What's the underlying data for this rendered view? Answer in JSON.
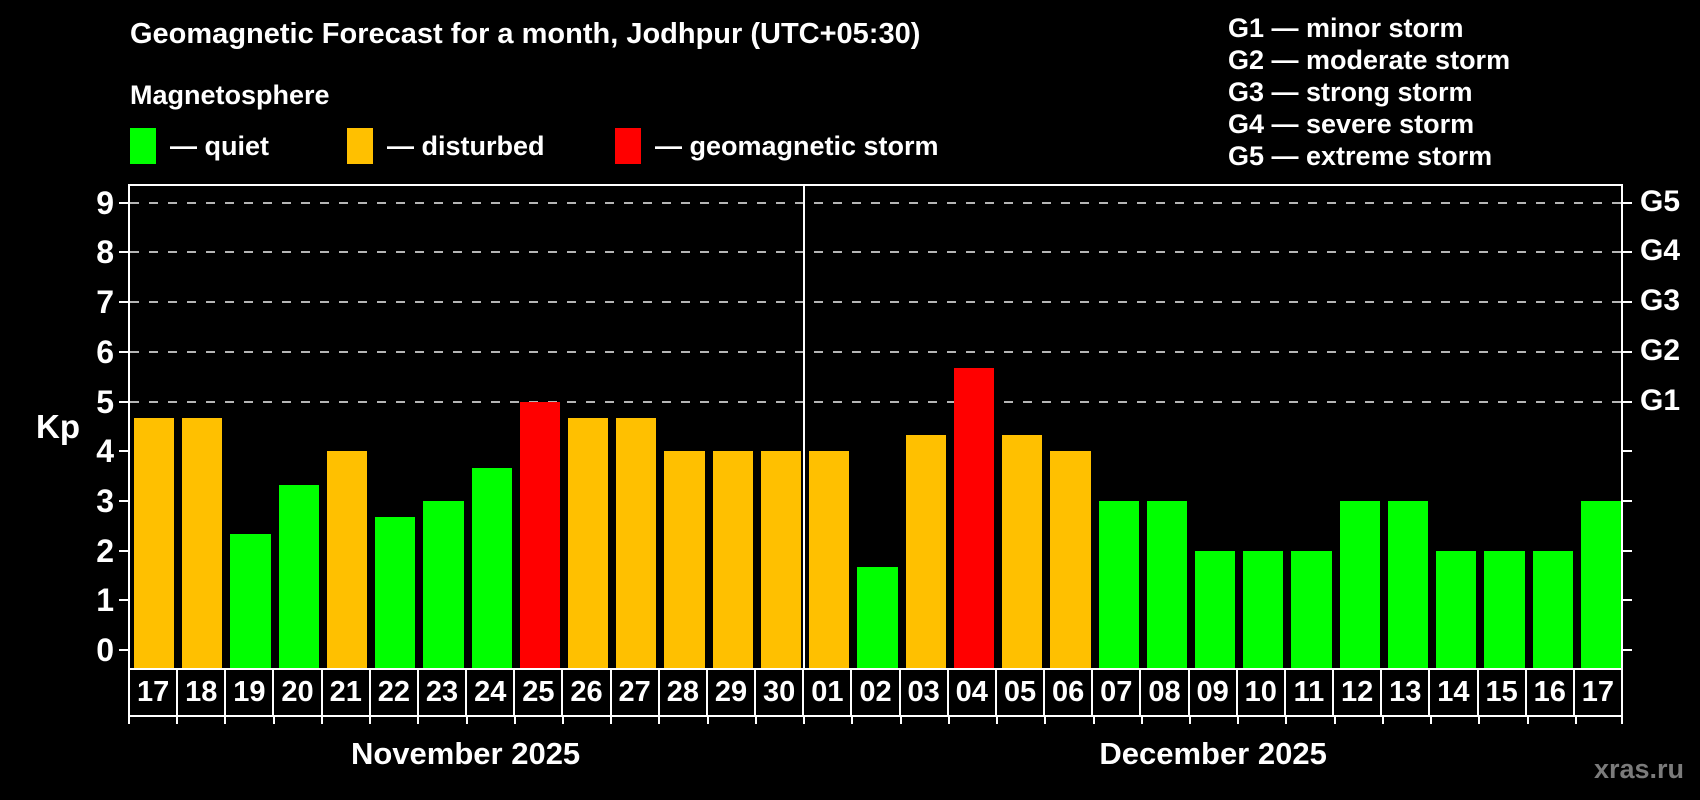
{
  "title": "Geomagnetic Forecast for a month, Jodhpur (UTC+05:30)",
  "subtitle": "Magnetosphere",
  "legend": {
    "items": [
      {
        "key": "quiet",
        "label": "— quiet",
        "color": "#00ff00"
      },
      {
        "key": "disturbed",
        "label": "— disturbed",
        "color": "#ffc000"
      },
      {
        "key": "storm",
        "label": "— geomagnetic storm",
        "color": "#ff0000"
      }
    ]
  },
  "g_scale_legend": [
    "G1 — minor storm",
    "G2 — moderate storm",
    "G3 — strong storm",
    "G4 — severe storm",
    "G5 — extreme storm"
  ],
  "watermark": "xras.ru",
  "chart_data": {
    "type": "bar",
    "title": "Geomagnetic Forecast for a month, Jodhpur (UTC+05:30)",
    "xlabel": "",
    "ylabel": "Kp",
    "ylim": [
      0,
      9.45
    ],
    "yticks": [
      0,
      1,
      2,
      3,
      4,
      5,
      6,
      7,
      8,
      9
    ],
    "gridlines_at_kp": [
      5,
      6,
      7,
      8,
      9
    ],
    "grid": "dashed horizontal at Kp 5-9",
    "legend_position": "top",
    "right_axis_labels": [
      {
        "kp": 5,
        "label": "G1"
      },
      {
        "kp": 6,
        "label": "G2"
      },
      {
        "kp": 7,
        "label": "G3"
      },
      {
        "kp": 8,
        "label": "G4"
      },
      {
        "kp": 9,
        "label": "G5"
      }
    ],
    "months": [
      {
        "label": "November 2025",
        "days": 14
      },
      {
        "label": "December 2025",
        "days": 17
      }
    ],
    "colors": {
      "quiet": "#00ff00",
      "disturbed": "#ffc000",
      "storm": "#ff0000"
    },
    "bars": [
      {
        "month": "November 2025",
        "day": "17",
        "kp": 4.67,
        "status": "disturbed"
      },
      {
        "month": "November 2025",
        "day": "18",
        "kp": 4.67,
        "status": "disturbed"
      },
      {
        "month": "November 2025",
        "day": "19",
        "kp": 2.33,
        "status": "quiet"
      },
      {
        "month": "November 2025",
        "day": "20",
        "kp": 3.33,
        "status": "quiet"
      },
      {
        "month": "November 2025",
        "day": "21",
        "kp": 4.0,
        "status": "disturbed"
      },
      {
        "month": "November 2025",
        "day": "22",
        "kp": 2.67,
        "status": "quiet"
      },
      {
        "month": "November 2025",
        "day": "23",
        "kp": 3.0,
        "status": "quiet"
      },
      {
        "month": "November 2025",
        "day": "24",
        "kp": 3.67,
        "status": "quiet"
      },
      {
        "month": "November 2025",
        "day": "25",
        "kp": 5.0,
        "status": "storm"
      },
      {
        "month": "November 2025",
        "day": "26",
        "kp": 4.67,
        "status": "disturbed"
      },
      {
        "month": "November 2025",
        "day": "27",
        "kp": 4.67,
        "status": "disturbed"
      },
      {
        "month": "November 2025",
        "day": "28",
        "kp": 4.0,
        "status": "disturbed"
      },
      {
        "month": "November 2025",
        "day": "29",
        "kp": 4.0,
        "status": "disturbed"
      },
      {
        "month": "November 2025",
        "day": "30",
        "kp": 4.0,
        "status": "disturbed"
      },
      {
        "month": "December 2025",
        "day": "01",
        "kp": 4.0,
        "status": "disturbed"
      },
      {
        "month": "December 2025",
        "day": "02",
        "kp": 1.67,
        "status": "quiet"
      },
      {
        "month": "December 2025",
        "day": "03",
        "kp": 4.33,
        "status": "disturbed"
      },
      {
        "month": "December 2025",
        "day": "04",
        "kp": 5.67,
        "status": "storm"
      },
      {
        "month": "December 2025",
        "day": "05",
        "kp": 4.33,
        "status": "disturbed"
      },
      {
        "month": "December 2025",
        "day": "06",
        "kp": 4.0,
        "status": "disturbed"
      },
      {
        "month": "December 2025",
        "day": "07",
        "kp": 3.0,
        "status": "quiet"
      },
      {
        "month": "December 2025",
        "day": "08",
        "kp": 3.0,
        "status": "quiet"
      },
      {
        "month": "December 2025",
        "day": "09",
        "kp": 2.0,
        "status": "quiet"
      },
      {
        "month": "December 2025",
        "day": "10",
        "kp": 2.0,
        "status": "quiet"
      },
      {
        "month": "December 2025",
        "day": "11",
        "kp": 2.0,
        "status": "quiet"
      },
      {
        "month": "December 2025",
        "day": "12",
        "kp": 3.0,
        "status": "quiet"
      },
      {
        "month": "December 2025",
        "day": "13",
        "kp": 3.0,
        "status": "quiet"
      },
      {
        "month": "December 2025",
        "day": "14",
        "kp": 2.0,
        "status": "quiet"
      },
      {
        "month": "December 2025",
        "day": "15",
        "kp": 2.0,
        "status": "quiet"
      },
      {
        "month": "December 2025",
        "day": "16",
        "kp": 2.0,
        "status": "quiet"
      },
      {
        "month": "December 2025",
        "day": "17",
        "kp": 3.0,
        "status": "quiet"
      }
    ]
  }
}
